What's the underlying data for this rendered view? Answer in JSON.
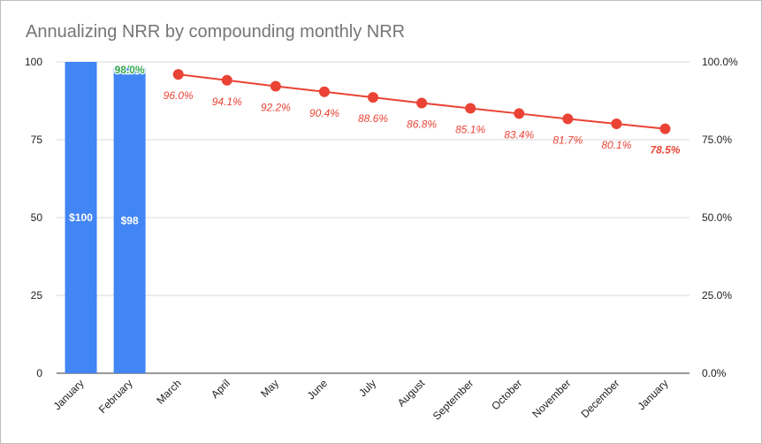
{
  "chart_data": {
    "type": "bar+line",
    "title": "Annualizing NRR by compounding monthly NRR",
    "categories": [
      "January",
      "February",
      "March",
      "April",
      "May",
      "June",
      "July",
      "August",
      "September",
      "October",
      "November",
      "December",
      "January"
    ],
    "bars": {
      "values": [
        100,
        98
      ],
      "labels": [
        "$100",
        "$98"
      ],
      "color": "#4285f4"
    },
    "line": {
      "values": [
        null,
        98.0,
        96.0,
        94.1,
        92.2,
        90.4,
        88.6,
        86.8,
        85.1,
        83.4,
        81.7,
        80.1,
        78.5
      ],
      "labels": [
        "",
        "98.0%",
        "96.0%",
        "94.1%",
        "92.2%",
        "90.4%",
        "88.6%",
        "86.8%",
        "85.1%",
        "83.4%",
        "81.7%",
        "80.1%",
        "78.5%"
      ],
      "color": "#ea4335",
      "first_label_color": "#34a853"
    },
    "y_left": {
      "ylim": [
        0,
        100
      ],
      "ticks": [
        0,
        25,
        50,
        75,
        100
      ],
      "tick_labels": [
        "0",
        "25",
        "50",
        "75",
        "100"
      ]
    },
    "y_right": {
      "ylim": [
        0,
        100
      ],
      "ticks": [
        0,
        25,
        50,
        75,
        100
      ],
      "tick_labels": [
        "0.0%",
        "25.0%",
        "50.0%",
        "75.0%",
        "100.0%"
      ]
    },
    "grid": true,
    "legend": "none"
  }
}
